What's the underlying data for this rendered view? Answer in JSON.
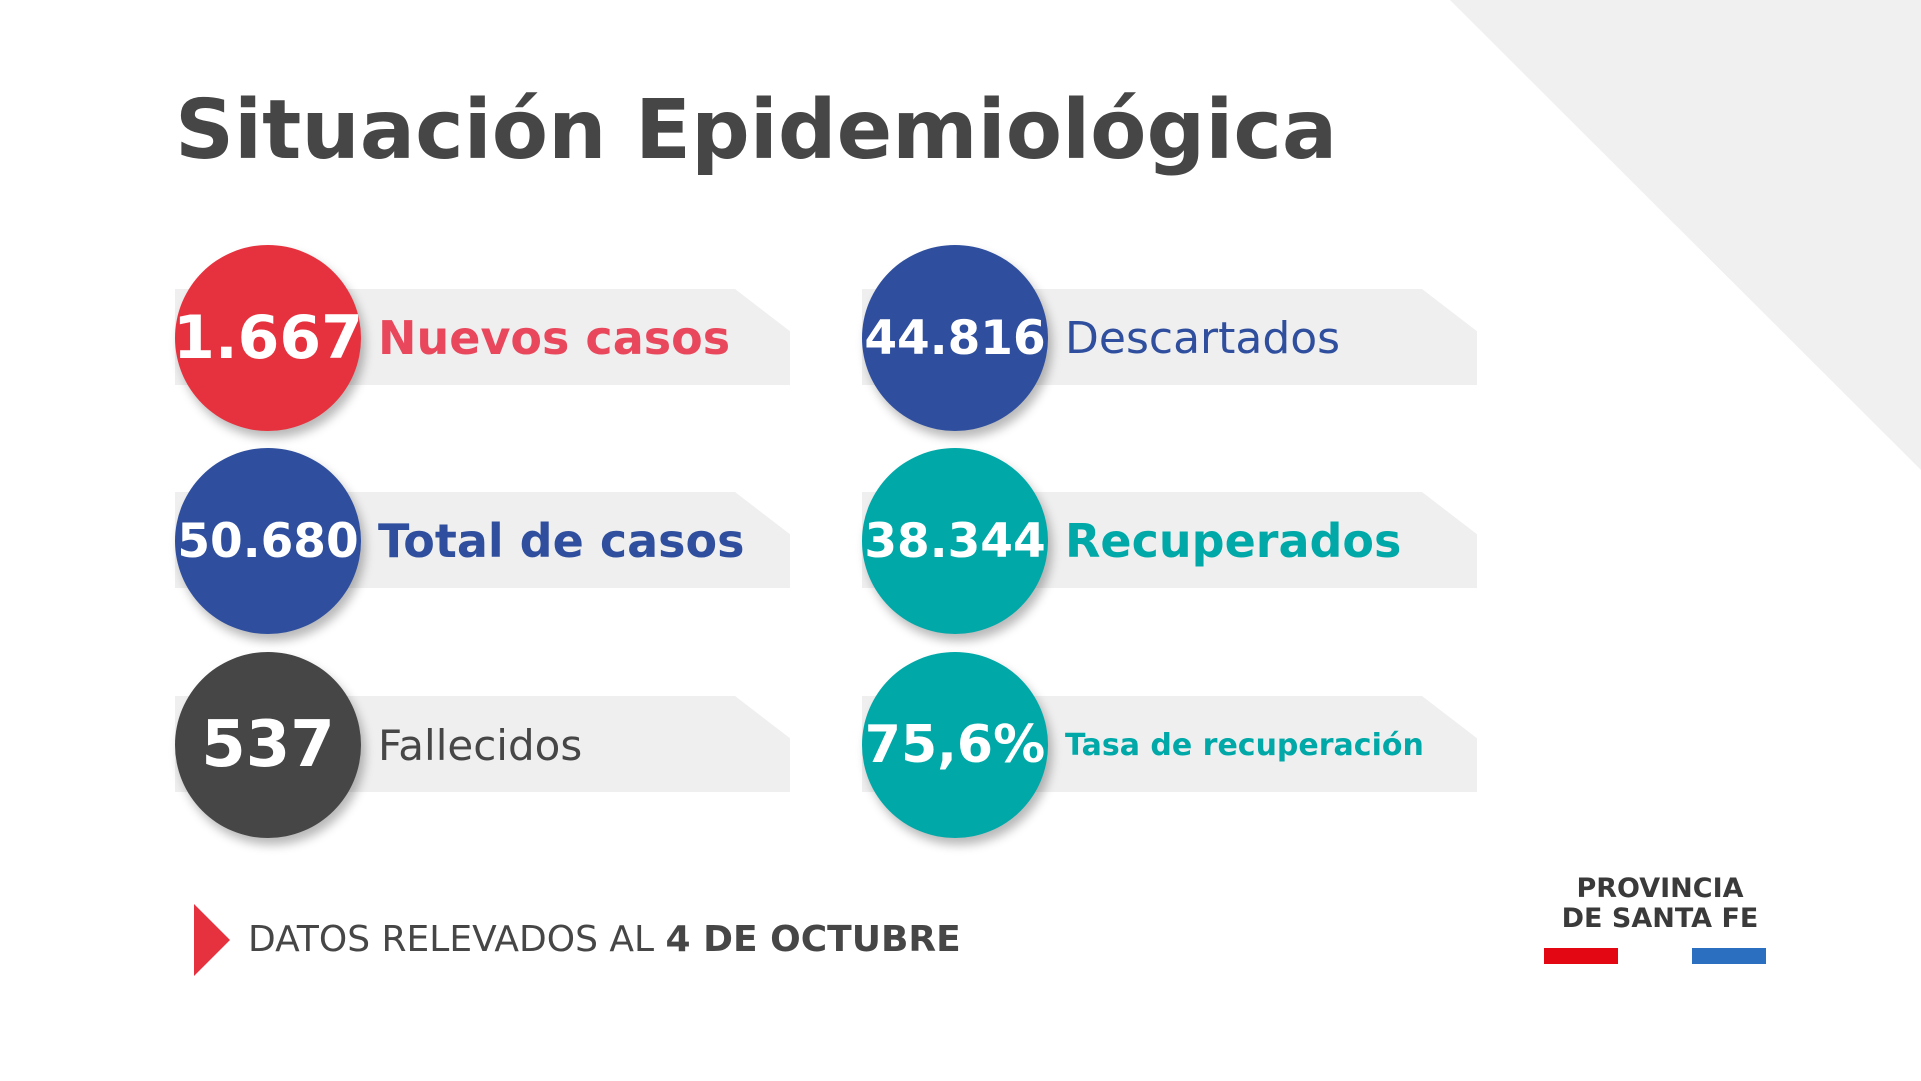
{
  "title": "Situación Epidemiológica",
  "stats": [
    {
      "value": "1.667",
      "label": "Nuevos casos",
      "circle_color": "#e6323e",
      "label_color": "#e8475c"
    },
    {
      "value": "44.816",
      "label": "Descartados",
      "circle_color": "#2f4f9e",
      "label_color": "#2f4f9e"
    },
    {
      "value": "50.680",
      "label": "Total de casos",
      "circle_color": "#2f4f9e",
      "label_color": "#2f4f9e"
    },
    {
      "value": "38.344",
      "label": "Recuperados",
      "circle_color": "#00a8a8",
      "label_color": "#00a8a8"
    },
    {
      "value": "537",
      "label": "Fallecidos",
      "circle_color": "#464646",
      "label_color": "#464646"
    },
    {
      "value": "75,6%",
      "label": "Tasa de recuperación",
      "circle_color": "#00a8a8",
      "label_color": "#00a8a8"
    }
  ],
  "footer": {
    "prefix": "DATOS RELEVADOS AL ",
    "date": "4 DE OCTUBRE",
    "accent_color": "#e6323e"
  },
  "logo": {
    "line1": "PROVINCIA",
    "line2": "DE SANTA FE",
    "bar_colors": [
      "#e30613",
      "#2a6fc0"
    ]
  },
  "colors": {
    "background": "#ffffff",
    "corner_decoration": "#f0f0f0",
    "band": "#efefef",
    "text_dark": "#464646"
  }
}
